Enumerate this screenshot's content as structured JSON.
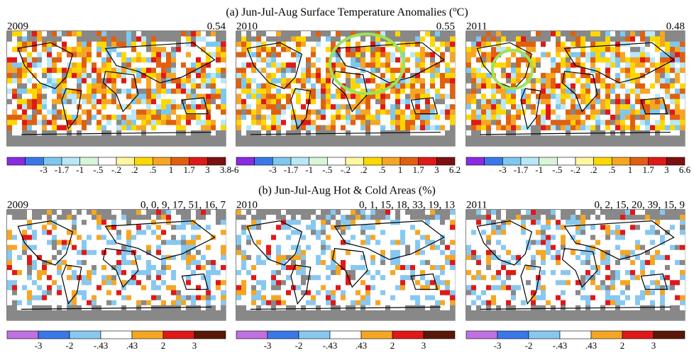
{
  "panel_a": {
    "title": "(a) Jun-Jul-Aug Surface Temperature Anomalies (",
    "title_sup": "o",
    "title_end": "C)",
    "maps": [
      {
        "year": "2009",
        "value": "0.54",
        "colorbar": {
          "labels": [
            "-3",
            "-1.7",
            "-1",
            "-.5",
            "-.2",
            ".2",
            ".5",
            "1",
            "1.7",
            "3"
          ],
          "right_end": "3.8"
        }
      },
      {
        "year": "2010",
        "value": "0.55",
        "colorbar": {
          "left_end": "-6",
          "labels": [
            "-3",
            "-1.7",
            "-1",
            "-.5",
            "-.2",
            ".2",
            ".5",
            "1",
            "1.7",
            "3"
          ],
          "right_end": "6.2"
        }
      },
      {
        "year": "2011",
        "value": "0.48",
        "colorbar": {
          "labels": [
            "-3",
            "-1.7",
            "-1",
            "-.5",
            "-.2",
            ".2",
            ".5",
            "1",
            "1.7",
            "3"
          ],
          "right_end": "6.6"
        }
      }
    ]
  },
  "panel_b": {
    "title": "(b) Jun-Jul-Aug Hot & Cold Areas (%)",
    "maps": [
      {
        "year": "2009",
        "value": "0, 0, 9, 17, 51, 16, 7",
        "colorbar": {
          "labels": [
            "-3",
            "-2",
            "-.43",
            ".43",
            "2",
            "3"
          ]
        }
      },
      {
        "year": "2010",
        "value": "0, 1, 15, 18, 33, 19, 13",
        "colorbar": {
          "labels": [
            "-3",
            "-2",
            "-.43",
            ".43",
            "2",
            "3"
          ]
        }
      },
      {
        "year": "2011",
        "value": "0, 2, 15, 20, 39, 15, 9",
        "colorbar": {
          "labels": [
            "-3",
            "-2",
            "-.43",
            ".43",
            "2",
            "3"
          ]
        }
      }
    ]
  }
}
